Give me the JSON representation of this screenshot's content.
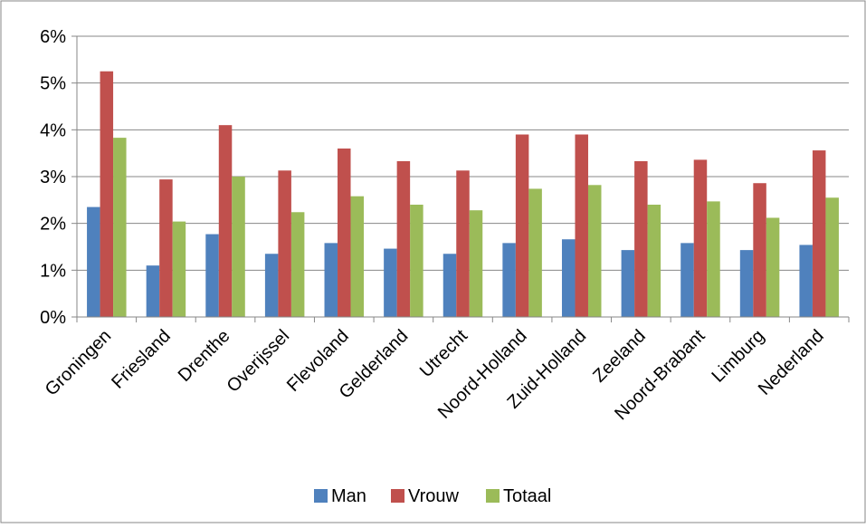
{
  "chart_data": {
    "type": "bar",
    "categories": [
      "Groningen",
      "Friesland",
      "Drenthe",
      "Overijssel",
      "Flevoland",
      "Gelderland",
      "Utrecht",
      "Noord-Holland",
      "Zuid-Holland",
      "Zeeland",
      "Noord-Brabant",
      "Limburg",
      "Nederland"
    ],
    "series": [
      {
        "name": "Man",
        "color": "#4F81BD",
        "values": [
          2.35,
          1.1,
          1.77,
          1.35,
          1.58,
          1.46,
          1.35,
          1.58,
          1.66,
          1.43,
          1.58,
          1.43,
          1.54
        ]
      },
      {
        "name": "Vrouw",
        "color": "#C0504D",
        "values": [
          5.25,
          2.94,
          4.1,
          3.13,
          3.6,
          3.33,
          3.13,
          3.9,
          3.9,
          3.33,
          3.36,
          2.86,
          3.56
        ]
      },
      {
        "name": "Totaal",
        "color": "#9BBB59",
        "values": [
          3.83,
          2.04,
          3.0,
          2.24,
          2.58,
          2.4,
          2.28,
          2.74,
          2.82,
          2.4,
          2.47,
          2.12,
          2.55
        ]
      }
    ],
    "yticks": [
      "0%",
      "1%",
      "2%",
      "3%",
      "4%",
      "5%",
      "6%"
    ],
    "ylim": [
      0,
      6
    ],
    "grid": true,
    "legend_position": "bottom",
    "colors": {
      "grid": "#878787",
      "axis": "#878787",
      "border": "#878787"
    }
  }
}
